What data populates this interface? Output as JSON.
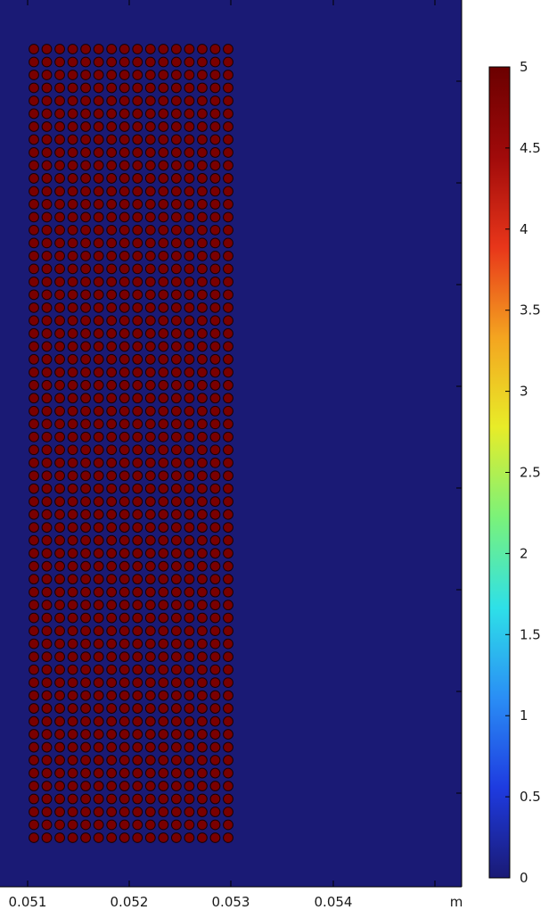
{
  "chart_data": {
    "type": "heatmap",
    "description_free": true,
    "plot_background_value": 0,
    "x_axis": {
      "ticks": [
        0.051,
        0.052,
        0.053,
        0.054
      ],
      "tick_labels": [
        "0.051",
        "0.052",
        "0.053",
        "0.054"
      ],
      "unit_label": "m",
      "range": [
        0.05095,
        0.05544
      ]
    },
    "y_axis": {
      "range": [
        0,
        1
      ]
    },
    "particle_grid": {
      "columns": 16,
      "rows": 62,
      "value": 5,
      "x_range": [
        0.051,
        0.053
      ],
      "y_range_fraction": [
        0.055,
        0.925
      ]
    },
    "colorbar": {
      "range": [
        0,
        5
      ],
      "ticks": [
        0,
        0.5,
        1,
        1.5,
        2,
        2.5,
        3,
        3.5,
        4,
        4.5,
        5
      ],
      "tick_labels": [
        "0",
        "0.5",
        "1",
        "1.5",
        "2",
        "2.5",
        "3",
        "3.5",
        "4",
        "4.5",
        "5"
      ],
      "colormap": [
        "#1a1a75",
        "#1e3be0",
        "#2a8ef5",
        "#2ee0e8",
        "#7af27a",
        "#e8ec28",
        "#f4a420",
        "#e8361a",
        "#a00a0a",
        "#6b0000"
      ]
    },
    "colors": {
      "plot_background": "#1a1a75",
      "particle_fill": "#7a0000",
      "particle_edge": "#1a0000"
    }
  }
}
